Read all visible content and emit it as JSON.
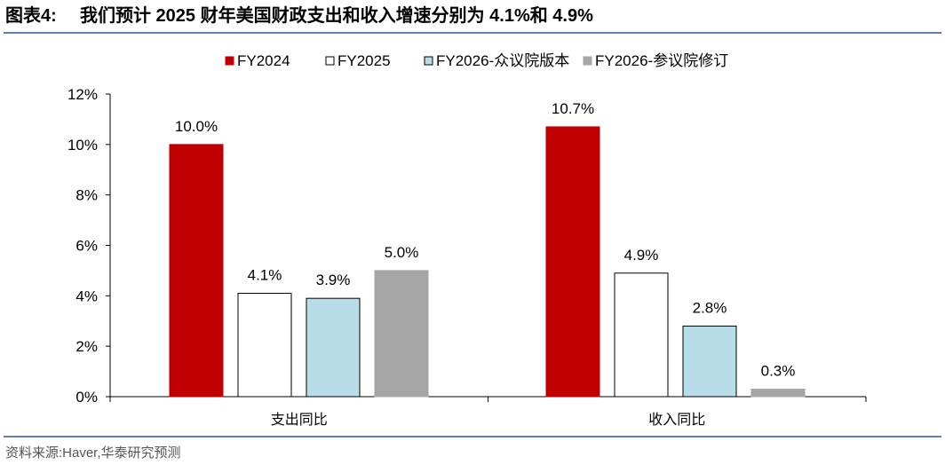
{
  "header": {
    "figure_label": "图表4:",
    "title": "我们预计 2025 财年美国财政支出和收入增速分别为 4.1%和 4.9%"
  },
  "footer": {
    "source": "资料来源:Haver,华泰研究预测"
  },
  "colors": {
    "rule": "#2f5597",
    "axis": "#000000",
    "series": [
      "#c00000",
      "#ffffff",
      "#b7dee8",
      "#a6a6a6"
    ],
    "bar_stroke": [
      "#c00000",
      "#000000",
      "#000000",
      "#a6a6a6"
    ]
  },
  "chart_data": {
    "type": "bar",
    "categories": [
      "支出同比",
      "收入同比"
    ],
    "series": [
      {
        "name": "FY2024",
        "values": [
          10.0,
          10.7
        ],
        "labels": [
          "10.0%",
          "10.7%"
        ]
      },
      {
        "name": "FY2025",
        "values": [
          4.1,
          4.9
        ],
        "labels": [
          "4.1%",
          "4.9%"
        ]
      },
      {
        "name": "FY2026-众议院版本",
        "values": [
          3.9,
          2.8
        ],
        "labels": [
          "3.9%",
          "2.8%"
        ]
      },
      {
        "name": "FY2026-参议院修订",
        "values": [
          5.0,
          0.3
        ],
        "labels": [
          "5.0%",
          "0.3%"
        ]
      }
    ],
    "ylim": [
      0,
      12
    ],
    "y_ticks": [
      "0%",
      "2%",
      "4%",
      "6%",
      "8%",
      "10%",
      "12%"
    ],
    "y_tick_values": [
      0,
      2,
      4,
      6,
      8,
      10,
      12
    ],
    "legend_position": "top",
    "grid": false
  }
}
